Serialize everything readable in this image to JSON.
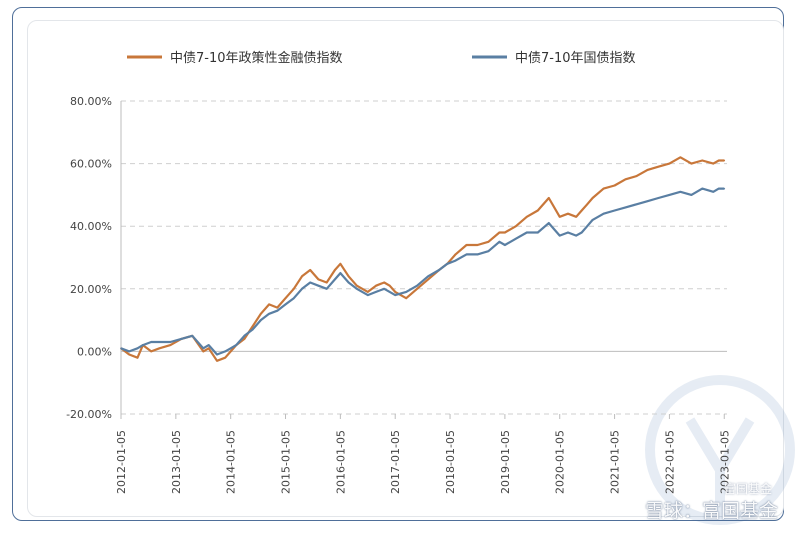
{
  "chart_data": {
    "type": "line",
    "ylim": [
      -0.2,
      0.8
    ],
    "yticks": [
      "80.00%",
      "60.00%",
      "40.00%",
      "20.00%",
      "0.00%",
      "-20.00%"
    ],
    "ytick_values": [
      0.8,
      0.6,
      0.4,
      0.2,
      0.0,
      -0.2
    ],
    "xticks": [
      "2012-01-05",
      "2013-01-05",
      "2014-01-05",
      "2015-01-05",
      "2016-01-05",
      "2017-01-05",
      "2018-01-05",
      "2019-01-05",
      "2020-01-05",
      "2021-01-05",
      "2022-01-05",
      "2023-01-05"
    ],
    "xlim": [
      2012.0,
      2023.05
    ],
    "grid": true,
    "legend_position": "top",
    "series": [
      {
        "name": "中债7-10年政策性金融债指数",
        "color": "#c8773a",
        "x": [
          2012.0,
          2012.15,
          2012.3,
          2012.4,
          2012.55,
          2012.7,
          2012.9,
          2013.1,
          2013.3,
          2013.5,
          2013.6,
          2013.75,
          2013.9,
          2014.0,
          2014.1,
          2014.25,
          2014.4,
          2014.55,
          2014.7,
          2014.85,
          2015.0,
          2015.15,
          2015.3,
          2015.45,
          2015.6,
          2015.75,
          2015.9,
          2016.0,
          2016.15,
          2016.3,
          2016.5,
          2016.65,
          2016.8,
          2016.9,
          2017.0,
          2017.2,
          2017.4,
          2017.6,
          2017.8,
          2017.95,
          2018.1,
          2018.3,
          2018.5,
          2018.7,
          2018.9,
          2019.0,
          2019.2,
          2019.4,
          2019.6,
          2019.8,
          2020.0,
          2020.15,
          2020.3,
          2020.4,
          2020.5,
          2020.6,
          2020.8,
          2021.0,
          2021.2,
          2021.4,
          2021.6,
          2021.8,
          2022.0,
          2022.2,
          2022.4,
          2022.6,
          2022.8,
          2022.9,
          2023.0
        ],
        "values": [
          0.01,
          -0.01,
          -0.02,
          0.02,
          0.0,
          0.01,
          0.02,
          0.04,
          0.05,
          0.0,
          0.01,
          -0.03,
          -0.02,
          0.0,
          0.02,
          0.04,
          0.08,
          0.12,
          0.15,
          0.14,
          0.17,
          0.2,
          0.24,
          0.26,
          0.23,
          0.22,
          0.26,
          0.28,
          0.24,
          0.21,
          0.19,
          0.21,
          0.22,
          0.21,
          0.19,
          0.17,
          0.2,
          0.23,
          0.26,
          0.28,
          0.31,
          0.34,
          0.34,
          0.35,
          0.38,
          0.38,
          0.4,
          0.43,
          0.45,
          0.49,
          0.43,
          0.44,
          0.43,
          0.45,
          0.47,
          0.49,
          0.52,
          0.53,
          0.55,
          0.56,
          0.58,
          0.59,
          0.6,
          0.62,
          0.6,
          0.61,
          0.6,
          0.61,
          0.61
        ]
      },
      {
        "name": "中债7-10年国债指数",
        "color": "#5a7fa3",
        "x": [
          2012.0,
          2012.15,
          2012.3,
          2012.4,
          2012.55,
          2012.7,
          2012.9,
          2013.1,
          2013.3,
          2013.5,
          2013.6,
          2013.75,
          2013.9,
          2014.0,
          2014.1,
          2014.25,
          2014.4,
          2014.55,
          2014.7,
          2014.85,
          2015.0,
          2015.15,
          2015.3,
          2015.45,
          2015.6,
          2015.75,
          2015.9,
          2016.0,
          2016.15,
          2016.3,
          2016.5,
          2016.65,
          2016.8,
          2016.9,
          2017.0,
          2017.2,
          2017.4,
          2017.6,
          2017.8,
          2017.95,
          2018.1,
          2018.3,
          2018.5,
          2018.7,
          2018.9,
          2019.0,
          2019.2,
          2019.4,
          2019.6,
          2019.8,
          2020.0,
          2020.15,
          2020.3,
          2020.4,
          2020.5,
          2020.6,
          2020.8,
          2021.0,
          2021.2,
          2021.4,
          2021.6,
          2021.8,
          2022.0,
          2022.2,
          2022.4,
          2022.6,
          2022.8,
          2022.9,
          2023.0
        ],
        "values": [
          0.01,
          0.0,
          0.01,
          0.02,
          0.03,
          0.03,
          0.03,
          0.04,
          0.05,
          0.01,
          0.02,
          -0.01,
          0.0,
          0.01,
          0.02,
          0.05,
          0.07,
          0.1,
          0.12,
          0.13,
          0.15,
          0.17,
          0.2,
          0.22,
          0.21,
          0.2,
          0.23,
          0.25,
          0.22,
          0.2,
          0.18,
          0.19,
          0.2,
          0.19,
          0.18,
          0.19,
          0.21,
          0.24,
          0.26,
          0.28,
          0.29,
          0.31,
          0.31,
          0.32,
          0.35,
          0.34,
          0.36,
          0.38,
          0.38,
          0.41,
          0.37,
          0.38,
          0.37,
          0.38,
          0.4,
          0.42,
          0.44,
          0.45,
          0.46,
          0.47,
          0.48,
          0.49,
          0.5,
          0.51,
          0.5,
          0.52,
          0.51,
          0.52,
          0.52
        ]
      }
    ]
  },
  "watermark": {
    "brand": "雪球：富国基金",
    "sub": "富国基金"
  }
}
